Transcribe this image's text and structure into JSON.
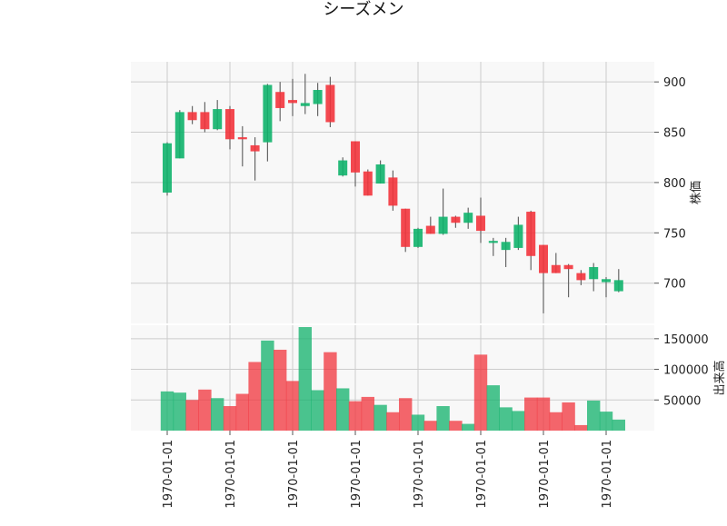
{
  "chart_data": [
    {
      "type": "candlestick",
      "title": "シーズメン",
      "ylabel": "株価",
      "ylim": [
        660,
        920
      ],
      "yticks": [
        "700",
        "750",
        "800",
        "850",
        "900"
      ],
      "xticks": [
        "1970-01-01",
        "1970-01-01",
        "1970-01-01",
        "1970-01-01",
        "1970-01-01",
        "1970-01-01",
        "1970-01-01",
        "1970-01-01"
      ],
      "grid": true,
      "up_color": "#10b26b",
      "down_color": "#f2343c",
      "ohlc": [
        {
          "o": 790,
          "h": 840,
          "l": 787,
          "c": 839
        },
        {
          "o": 824,
          "h": 872,
          "l": 824,
          "c": 870
        },
        {
          "o": 870,
          "h": 876,
          "l": 858,
          "c": 862
        },
        {
          "o": 870,
          "h": 880,
          "l": 850,
          "c": 853
        },
        {
          "o": 853,
          "h": 882,
          "l": 852,
          "c": 873
        },
        {
          "o": 873,
          "h": 876,
          "l": 833,
          "c": 843
        },
        {
          "o": 845,
          "h": 856,
          "l": 816,
          "c": 843
        },
        {
          "o": 837,
          "h": 845,
          "l": 802,
          "c": 831
        },
        {
          "o": 840,
          "h": 898,
          "l": 821,
          "c": 897
        },
        {
          "o": 890,
          "h": 900,
          "l": 861,
          "c": 874
        },
        {
          "o": 882,
          "h": 903,
          "l": 866,
          "c": 879
        },
        {
          "o": 876,
          "h": 908,
          "l": 868,
          "c": 879
        },
        {
          "o": 878,
          "h": 899,
          "l": 866,
          "c": 892
        },
        {
          "o": 897,
          "h": 905,
          "l": 855,
          "c": 860
        },
        {
          "o": 807,
          "h": 825,
          "l": 806,
          "c": 822
        },
        {
          "o": 841,
          "h": 841,
          "l": 796,
          "c": 810
        },
        {
          "o": 811,
          "h": 813,
          "l": 787,
          "c": 787
        },
        {
          "o": 799,
          "h": 822,
          "l": 799,
          "c": 818
        },
        {
          "o": 805,
          "h": 812,
          "l": 772,
          "c": 777
        },
        {
          "o": 774,
          "h": 774,
          "l": 731,
          "c": 736
        },
        {
          "o": 736,
          "h": 755,
          "l": 735,
          "c": 754
        },
        {
          "o": 757,
          "h": 766,
          "l": 749,
          "c": 749
        },
        {
          "o": 749,
          "h": 794,
          "l": 748,
          "c": 766
        },
        {
          "o": 766,
          "h": 767,
          "l": 755,
          "c": 760
        },
        {
          "o": 760,
          "h": 775,
          "l": 754,
          "c": 770
        },
        {
          "o": 767,
          "h": 785,
          "l": 740,
          "c": 752
        },
        {
          "o": 740,
          "h": 745,
          "l": 727,
          "c": 742
        },
        {
          "o": 733,
          "h": 745,
          "l": 716,
          "c": 741
        },
        {
          "o": 735,
          "h": 766,
          "l": 733,
          "c": 758
        },
        {
          "o": 771,
          "h": 772,
          "l": 713,
          "c": 727
        },
        {
          "o": 738,
          "h": 738,
          "l": 670,
          "c": 710
        },
        {
          "o": 718,
          "h": 730,
          "l": 710,
          "c": 710
        },
        {
          "o": 718,
          "h": 719,
          "l": 686,
          "c": 714
        },
        {
          "o": 710,
          "h": 713,
          "l": 698,
          "c": 703
        },
        {
          "o": 704,
          "h": 720,
          "l": 692,
          "c": 716
        },
        {
          "o": 701,
          "h": 706,
          "l": 686,
          "c": 704
        },
        {
          "o": 692,
          "h": 714,
          "l": 691,
          "c": 703
        }
      ]
    },
    {
      "type": "bar",
      "ylabel": "出来高",
      "ylim": [
        0,
        172000
      ],
      "yticks": [
        "50000",
        "100000",
        "150000"
      ],
      "grid": true,
      "up_color": "#10b26b",
      "down_color": "#f2343c",
      "values": [
        64000,
        62000,
        50000,
        67000,
        53000,
        40000,
        60000,
        112000,
        147000,
        132000,
        81000,
        169000,
        66000,
        128000,
        69000,
        48000,
        55000,
        42000,
        30000,
        53000,
        26000,
        16000,
        40000,
        16000,
        11000,
        124000,
        74000,
        38000,
        32000,
        54000,
        54000,
        30000,
        46000,
        9000,
        49000,
        31000,
        18000
      ]
    }
  ]
}
